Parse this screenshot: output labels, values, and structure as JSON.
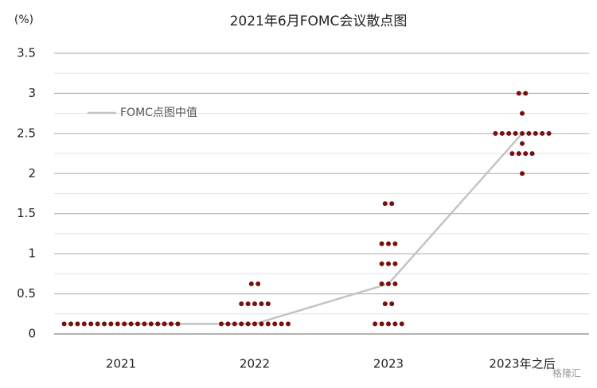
{
  "chart_data": {
    "type": "dot",
    "title": "2021年6月FOMC会议散点图",
    "y_label": "(%)",
    "categories": [
      "2021",
      "2022",
      "2023",
      "2023年之后"
    ],
    "dots": [
      [
        0.125,
        0.125,
        0.125,
        0.125,
        0.125,
        0.125,
        0.125,
        0.125,
        0.125,
        0.125,
        0.125,
        0.125,
        0.125,
        0.125,
        0.125,
        0.125,
        0.125,
        0.125
      ],
      [
        0.125,
        0.125,
        0.125,
        0.125,
        0.125,
        0.125,
        0.125,
        0.125,
        0.125,
        0.125,
        0.125,
        0.375,
        0.375,
        0.375,
        0.375,
        0.375,
        0.625,
        0.625
      ],
      [
        0.125,
        0.125,
        0.125,
        0.125,
        0.125,
        0.375,
        0.375,
        0.625,
        0.625,
        0.625,
        0.875,
        0.875,
        0.875,
        1.125,
        1.125,
        1.125,
        1.625,
        1.625
      ],
      [
        2.0,
        2.25,
        2.25,
        2.25,
        2.25,
        2.375,
        2.5,
        2.5,
        2.5,
        2.5,
        2.5,
        2.5,
        2.5,
        2.5,
        2.5,
        2.75,
        3.0,
        3.0
      ]
    ],
    "dot_color": "#7a0f0f",
    "series": [
      {
        "name": "FOMC点图中值",
        "color": "#c4c4c4",
        "values": [
          0.125,
          0.125,
          0.625,
          2.5
        ]
      }
    ],
    "ylim": [
      0,
      3.5
    ],
    "yticks": [
      0,
      0.5,
      1,
      1.5,
      2,
      2.5,
      3,
      3.5
    ],
    "minor_yticks": [
      0.25,
      0.75,
      1.25,
      1.75,
      2.25,
      2.75,
      3.25
    ],
    "grid": true,
    "legend": "upper-left",
    "watermark": "格隆汇"
  }
}
